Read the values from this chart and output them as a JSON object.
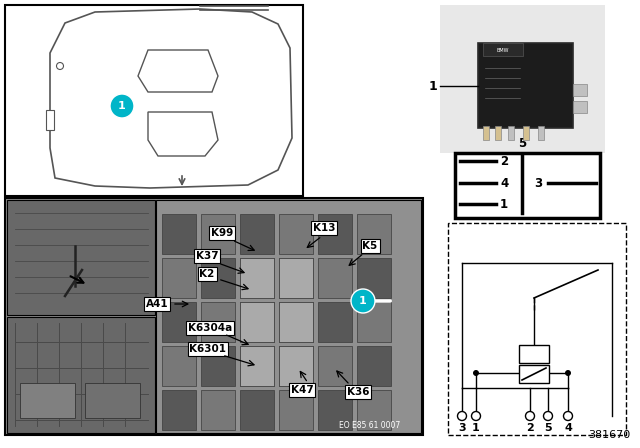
{
  "bg_color": "#ffffff",
  "teal_color": "#00b5c8",
  "part_number": "381670",
  "eo_number": "EO E85 61 0007",
  "labels_left": [
    "K99",
    "K37",
    "K2",
    "A41",
    "K6304a",
    "K6301"
  ],
  "labels_right": [
    "K13",
    "K5",
    "K47",
    "K36"
  ],
  "pin_labels_left": [
    [
      "2",
      0.82
    ],
    [
      "4",
      0.55
    ],
    [
      "1",
      0.18
    ]
  ],
  "pin_label_right": [
    "3",
    0.55
  ],
  "pin_label_center": [
    "5",
    0.0
  ],
  "terminal_labels": [
    "3",
    "1",
    "2",
    "5",
    "4"
  ]
}
